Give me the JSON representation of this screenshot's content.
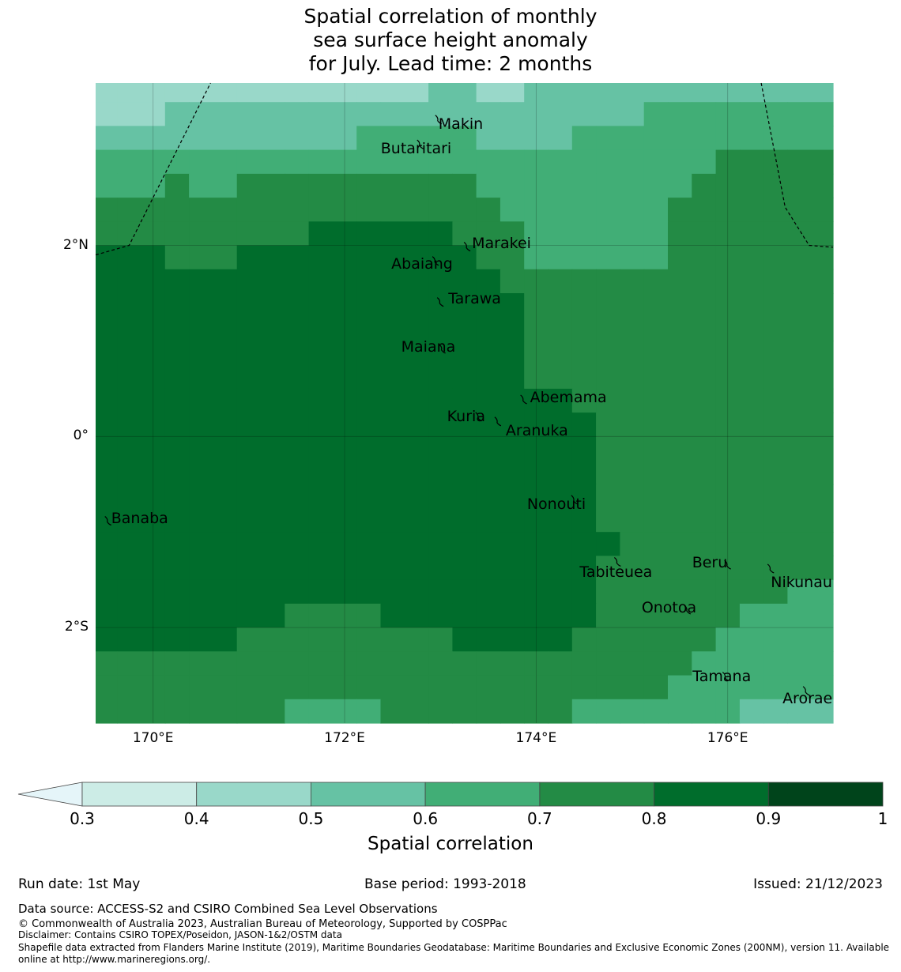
{
  "title": {
    "line1": "Spatial correlation of monthly",
    "line2": "sea surface height anomaly",
    "line3": "for July. Lead time: 2 months"
  },
  "map": {
    "lon_range": [
      169.4,
      177.1
    ],
    "lat_range": [
      -3.0,
      3.7
    ],
    "x_ticks": [
      {
        "lon": 170,
        "label": "170°E"
      },
      {
        "lon": 172,
        "label": "172°E"
      },
      {
        "lon": 174,
        "label": "174°E"
      },
      {
        "lon": 176,
        "label": "176°E"
      }
    ],
    "y_ticks": [
      {
        "lat": 2,
        "label": "2°N"
      },
      {
        "lat": 0,
        "label": "0°"
      },
      {
        "lat": -2,
        "label": "2°S"
      }
    ],
    "islands": [
      {
        "name": "Makin",
        "lon": 172.98,
        "lat": 3.33
      },
      {
        "name": "Butaritari",
        "lon": 172.79,
        "lat": 3.07
      },
      {
        "name": "Marakei",
        "lon": 173.28,
        "lat": 2.0
      },
      {
        "name": "Abaiang",
        "lon": 172.95,
        "lat": 1.85
      },
      {
        "name": "Tarawa",
        "lon": 173.0,
        "lat": 1.42
      },
      {
        "name": "Maiana",
        "lon": 173.02,
        "lat": 0.93
      },
      {
        "name": "Abemama",
        "lon": 173.87,
        "lat": 0.4
      },
      {
        "name": "Kuria",
        "lon": 173.4,
        "lat": 0.22
      },
      {
        "name": "Aranuka",
        "lon": 173.6,
        "lat": 0.17
      },
      {
        "name": "Nonouti",
        "lon": 174.4,
        "lat": -0.65
      },
      {
        "name": "Banaba",
        "lon": 169.53,
        "lat": -0.87
      },
      {
        "name": "Tabiteuea",
        "lon": 174.85,
        "lat": -1.3
      },
      {
        "name": "Beru",
        "lon": 176.0,
        "lat": -1.33
      },
      {
        "name": "Nikunau",
        "lon": 176.45,
        "lat": -1.37
      },
      {
        "name": "Onotoa",
        "lon": 175.58,
        "lat": -1.8
      },
      {
        "name": "Tamana",
        "lon": 175.98,
        "lat": -2.5
      },
      {
        "name": "Arorae",
        "lon": 176.82,
        "lat": -2.65
      }
    ],
    "correlation_grid": {
      "lon_edges": [
        169.4,
        169.625,
        170.125,
        170.375,
        170.875,
        171.375,
        171.625,
        172.125,
        172.375,
        172.875,
        173.125,
        173.375,
        173.625,
        173.875,
        174.125,
        174.375,
        174.625,
        174.875,
        175.125,
        175.375,
        175.625,
        175.875,
        176.125,
        176.375,
        176.625,
        177.1
      ],
      "lat_edges": [
        3.7,
        3.5,
        3.25,
        3.0,
        2.75,
        2.5,
        2.25,
        2.0,
        1.75,
        1.5,
        1.0,
        0.5,
        0.25,
        0.0,
        -0.5,
        -1.0,
        -1.25,
        -1.5,
        -1.75,
        -2.0,
        -2.25,
        -2.5,
        -2.75,
        -3.0
      ],
      "rows": [
        [
          0.45,
          0.45,
          0.45,
          0.45,
          0.45,
          0.45,
          0.45,
          0.45,
          0.45,
          0.55,
          0.55,
          0.45,
          0.45,
          0.55,
          0.55,
          0.55,
          0.55,
          0.55,
          0.55,
          0.55,
          0.55,
          0.55,
          0.55,
          0.55,
          0.55
        ],
        [
          0.45,
          0.45,
          0.55,
          0.55,
          0.55,
          0.55,
          0.55,
          0.55,
          0.55,
          0.55,
          0.55,
          0.55,
          0.55,
          0.55,
          0.55,
          0.55,
          0.55,
          0.55,
          0.65,
          0.65,
          0.65,
          0.65,
          0.65,
          0.65,
          0.65
        ],
        [
          0.55,
          0.55,
          0.55,
          0.55,
          0.55,
          0.55,
          0.55,
          0.65,
          0.65,
          0.65,
          0.65,
          0.55,
          0.55,
          0.55,
          0.55,
          0.65,
          0.65,
          0.65,
          0.65,
          0.65,
          0.65,
          0.65,
          0.65,
          0.65,
          0.65
        ],
        [
          0.65,
          0.65,
          0.65,
          0.65,
          0.65,
          0.65,
          0.65,
          0.65,
          0.65,
          0.65,
          0.65,
          0.65,
          0.65,
          0.65,
          0.65,
          0.65,
          0.65,
          0.65,
          0.65,
          0.65,
          0.65,
          0.75,
          0.75,
          0.75,
          0.75
        ],
        [
          0.65,
          0.65,
          0.75,
          0.65,
          0.75,
          0.75,
          0.75,
          0.75,
          0.75,
          0.75,
          0.75,
          0.65,
          0.65,
          0.65,
          0.65,
          0.65,
          0.65,
          0.65,
          0.65,
          0.65,
          0.75,
          0.75,
          0.75,
          0.75,
          0.75
        ],
        [
          0.75,
          0.75,
          0.75,
          0.75,
          0.75,
          0.75,
          0.75,
          0.75,
          0.75,
          0.75,
          0.75,
          0.75,
          0.65,
          0.65,
          0.65,
          0.65,
          0.65,
          0.65,
          0.65,
          0.75,
          0.75,
          0.75,
          0.75,
          0.75,
          0.75
        ],
        [
          0.75,
          0.75,
          0.75,
          0.75,
          0.75,
          0.75,
          0.85,
          0.85,
          0.85,
          0.85,
          0.75,
          0.75,
          0.75,
          0.65,
          0.65,
          0.65,
          0.65,
          0.65,
          0.65,
          0.75,
          0.75,
          0.75,
          0.75,
          0.75,
          0.75
        ],
        [
          0.85,
          0.85,
          0.75,
          0.75,
          0.85,
          0.85,
          0.85,
          0.85,
          0.85,
          0.85,
          0.85,
          0.75,
          0.75,
          0.65,
          0.65,
          0.65,
          0.65,
          0.65,
          0.65,
          0.75,
          0.75,
          0.75,
          0.75,
          0.75,
          0.75
        ],
        [
          0.85,
          0.85,
          0.85,
          0.85,
          0.85,
          0.85,
          0.85,
          0.85,
          0.85,
          0.85,
          0.85,
          0.85,
          0.75,
          0.75,
          0.75,
          0.75,
          0.75,
          0.75,
          0.75,
          0.75,
          0.75,
          0.75,
          0.75,
          0.75,
          0.75
        ],
        [
          0.85,
          0.85,
          0.85,
          0.85,
          0.85,
          0.85,
          0.85,
          0.85,
          0.85,
          0.85,
          0.85,
          0.85,
          0.85,
          0.75,
          0.75,
          0.75,
          0.75,
          0.75,
          0.75,
          0.75,
          0.75,
          0.75,
          0.75,
          0.75,
          0.75
        ],
        [
          0.85,
          0.85,
          0.85,
          0.85,
          0.85,
          0.85,
          0.85,
          0.85,
          0.85,
          0.85,
          0.85,
          0.85,
          0.85,
          0.75,
          0.75,
          0.75,
          0.75,
          0.75,
          0.75,
          0.75,
          0.75,
          0.75,
          0.75,
          0.75,
          0.75
        ],
        [
          0.85,
          0.85,
          0.85,
          0.85,
          0.85,
          0.85,
          0.85,
          0.85,
          0.85,
          0.85,
          0.85,
          0.85,
          0.85,
          0.85,
          0.85,
          0.75,
          0.75,
          0.75,
          0.75,
          0.75,
          0.75,
          0.75,
          0.75,
          0.75,
          0.75
        ],
        [
          0.85,
          0.85,
          0.85,
          0.85,
          0.85,
          0.85,
          0.85,
          0.85,
          0.85,
          0.85,
          0.85,
          0.85,
          0.85,
          0.85,
          0.85,
          0.85,
          0.75,
          0.75,
          0.75,
          0.75,
          0.75,
          0.75,
          0.75,
          0.75,
          0.75
        ],
        [
          0.85,
          0.85,
          0.85,
          0.85,
          0.85,
          0.85,
          0.85,
          0.85,
          0.85,
          0.85,
          0.85,
          0.85,
          0.85,
          0.85,
          0.85,
          0.85,
          0.75,
          0.75,
          0.75,
          0.75,
          0.75,
          0.75,
          0.75,
          0.75,
          0.75
        ],
        [
          0.85,
          0.85,
          0.85,
          0.85,
          0.85,
          0.85,
          0.85,
          0.85,
          0.85,
          0.85,
          0.85,
          0.85,
          0.85,
          0.85,
          0.85,
          0.85,
          0.75,
          0.75,
          0.75,
          0.75,
          0.75,
          0.75,
          0.75,
          0.75,
          0.75
        ],
        [
          0.85,
          0.85,
          0.85,
          0.85,
          0.85,
          0.85,
          0.85,
          0.85,
          0.85,
          0.85,
          0.85,
          0.85,
          0.85,
          0.85,
          0.85,
          0.85,
          0.85,
          0.75,
          0.75,
          0.75,
          0.75,
          0.75,
          0.75,
          0.75,
          0.75
        ],
        [
          0.85,
          0.85,
          0.85,
          0.85,
          0.85,
          0.85,
          0.85,
          0.85,
          0.85,
          0.85,
          0.85,
          0.85,
          0.85,
          0.85,
          0.85,
          0.85,
          0.75,
          0.75,
          0.75,
          0.75,
          0.75,
          0.75,
          0.75,
          0.75,
          0.75
        ],
        [
          0.85,
          0.85,
          0.85,
          0.85,
          0.85,
          0.85,
          0.85,
          0.85,
          0.85,
          0.85,
          0.85,
          0.85,
          0.85,
          0.85,
          0.85,
          0.85,
          0.75,
          0.75,
          0.75,
          0.75,
          0.75,
          0.75,
          0.75,
          0.75,
          0.65
        ],
        [
          0.85,
          0.85,
          0.85,
          0.85,
          0.85,
          0.75,
          0.75,
          0.75,
          0.85,
          0.85,
          0.85,
          0.85,
          0.85,
          0.85,
          0.85,
          0.85,
          0.75,
          0.75,
          0.75,
          0.75,
          0.75,
          0.75,
          0.65,
          0.65,
          0.65
        ],
        [
          0.85,
          0.85,
          0.85,
          0.85,
          0.75,
          0.75,
          0.75,
          0.75,
          0.75,
          0.75,
          0.85,
          0.85,
          0.85,
          0.85,
          0.85,
          0.75,
          0.75,
          0.75,
          0.75,
          0.75,
          0.75,
          0.65,
          0.65,
          0.65,
          0.65
        ],
        [
          0.75,
          0.75,
          0.75,
          0.75,
          0.75,
          0.75,
          0.75,
          0.75,
          0.75,
          0.75,
          0.75,
          0.75,
          0.75,
          0.75,
          0.75,
          0.75,
          0.75,
          0.75,
          0.75,
          0.75,
          0.65,
          0.65,
          0.65,
          0.65,
          0.65
        ],
        [
          0.75,
          0.75,
          0.75,
          0.75,
          0.75,
          0.75,
          0.75,
          0.75,
          0.75,
          0.75,
          0.75,
          0.75,
          0.75,
          0.75,
          0.75,
          0.75,
          0.75,
          0.75,
          0.75,
          0.65,
          0.65,
          0.65,
          0.65,
          0.65,
          0.65
        ],
        [
          0.75,
          0.75,
          0.75,
          0.75,
          0.75,
          0.65,
          0.65,
          0.65,
          0.75,
          0.75,
          0.75,
          0.75,
          0.75,
          0.75,
          0.75,
          0.65,
          0.65,
          0.65,
          0.65,
          0.65,
          0.65,
          0.65,
          0.55,
          0.55,
          0.55
        ],
        [
          0.75,
          0.65,
          0.65,
          0.65,
          0.65,
          0.65,
          0.65,
          0.65,
          0.65,
          0.65,
          0.65,
          0.65,
          0.65,
          0.65,
          0.65,
          0.65,
          0.65,
          0.65,
          0.65,
          0.55,
          0.55,
          0.55,
          0.55,
          0.55,
          0.55
        ]
      ]
    },
    "eez_boundaries": [
      [
        [
          169.4,
          1.9
        ],
        [
          169.75,
          2.0
        ],
        [
          170.6,
          3.7
        ]
      ],
      [
        [
          176.35,
          3.7
        ],
        [
          176.6,
          2.4
        ],
        [
          176.85,
          2.0
        ],
        [
          177.1,
          1.98
        ]
      ]
    ]
  },
  "colorbar": {
    "label": "Spatial correlation",
    "ticks": [
      "0.3",
      "0.4",
      "0.5",
      "0.6",
      "0.7",
      "0.8",
      "0.9",
      "1"
    ],
    "under_color": "#e5f5f9",
    "colors": [
      "#ccece6",
      "#99d8c9",
      "#66c2a4",
      "#41ae76",
      "#238b45",
      "#006d2c",
      "#00441b"
    ]
  },
  "footer": {
    "run_date": "Run date: 1st May",
    "base_period": "Base period: 1993-2018",
    "issued": "Issued: 21/12/2023",
    "data_source": "Data source: ACCESS-S2 and CSIRO Combined Sea Level Observations",
    "copyright": "© Commonwealth of Australia 2023, Australian Bureau of Meteorology, Supported by COSPPac",
    "disclaimer": "Disclaimer: Contains CSIRO TOPEX/Poseidon, JASON-1&2/OSTM data",
    "shapefile_1": "Shapefile data extracted from Flanders Marine Institute (2019), Maritime Boundaries Geodatabase: Maritime Boundaries and Exclusive Economic Zones (200NM), version 11. Available",
    "shapefile_2": "online at http://www.marineregions.org/."
  }
}
